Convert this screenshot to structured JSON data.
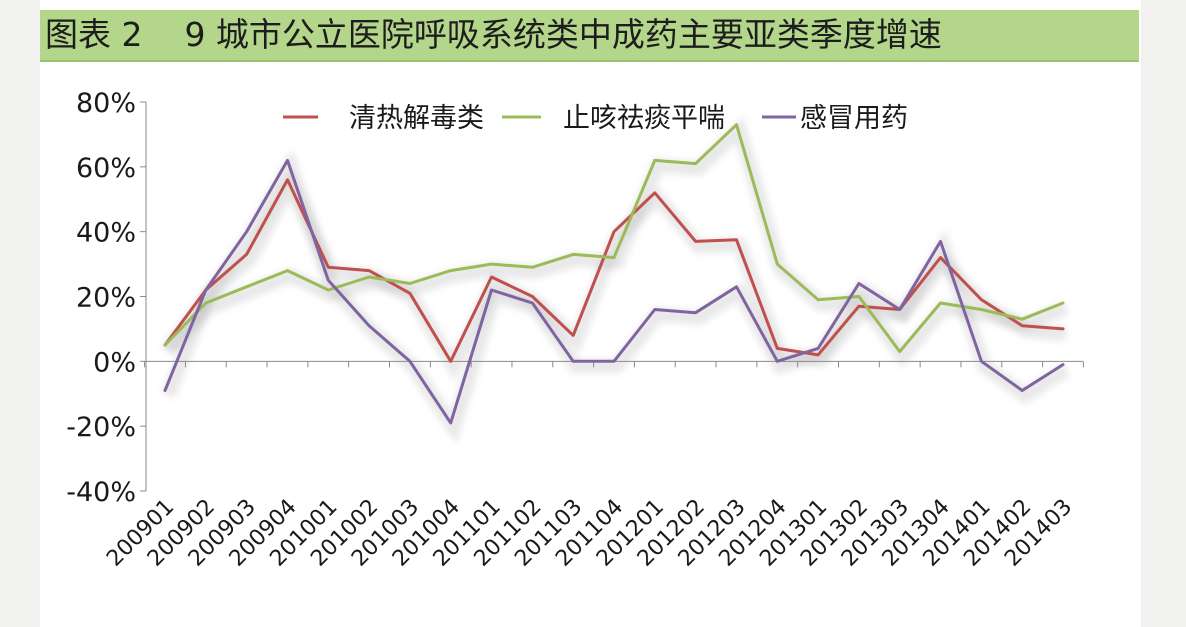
{
  "figure_title": "图表 2    9 城市公立医院呼吸系统类中成药主要亚类季度增速",
  "chart_data": {
    "type": "line",
    "categories": [
      "200901",
      "200902",
      "200903",
      "200904",
      "201001",
      "201002",
      "201003",
      "201004",
      "201101",
      "201102",
      "201103",
      "201104",
      "201201",
      "201202",
      "201203",
      "201204",
      "201301",
      "201302",
      "201303",
      "201304",
      "201401",
      "201402",
      "201403"
    ],
    "series": [
      {
        "name": "清热解毒类",
        "color": "#c0504d",
        "values": [
          5,
          22,
          33,
          56,
          29,
          28,
          21,
          0,
          26,
          20,
          8,
          40,
          52,
          37,
          37.5,
          4,
          2,
          17,
          16,
          32,
          19,
          11,
          10
        ]
      },
      {
        "name": "止咳祛痰平喘",
        "color": "#9bbb59",
        "values": [
          5,
          18,
          23,
          28,
          22,
          26,
          24,
          28,
          30,
          29,
          33,
          32,
          62,
          61,
          73,
          30,
          19,
          20,
          3,
          18,
          16,
          13,
          18
        ]
      },
      {
        "name": "感冒用药",
        "color": "#8064a2",
        "values": [
          -9,
          22,
          40,
          62,
          25,
          11,
          0,
          -19,
          22,
          18,
          0,
          0,
          16,
          15,
          23,
          0,
          4,
          24,
          16,
          37,
          0,
          -9,
          -1
        ]
      }
    ],
    "y_tick_labels": [
      "80%",
      "60%",
      "40%",
      "20%",
      "0%",
      "-20%",
      "-40%"
    ],
    "ylim": [
      -40,
      80
    ],
    "y_step": 20,
    "legend_position": "top"
  }
}
